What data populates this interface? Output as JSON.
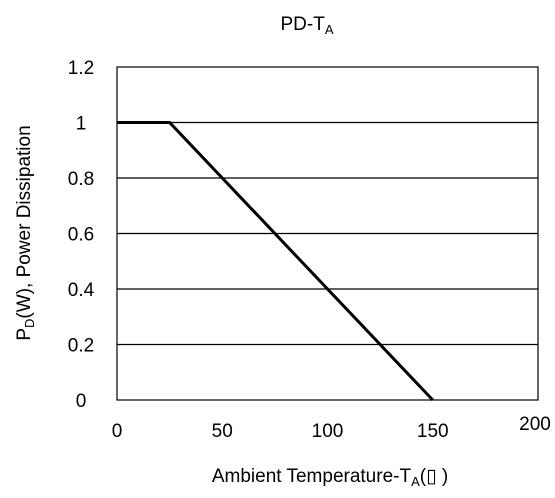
{
  "chart_data": {
    "type": "line",
    "title_main": "PD-T",
    "title_sub": "A",
    "ylabel_main_1": "P",
    "ylabel_sub": "D",
    "ylabel_main_2": "(W), Power Dissipation",
    "xlabel_main_1": "Ambient Temperature-T",
    "xlabel_sub": "A",
    "xlabel_main_2": "(",
    "xlabel_unit_glyph": "▯",
    "xlabel_main_3": " )",
    "x_ticks": [
      "0",
      "50",
      "100",
      "150",
      "200"
    ],
    "y_ticks": [
      "0",
      "0.2",
      "0.4",
      "0.6",
      "0.8",
      "1",
      "1.2"
    ],
    "xlim": [
      0,
      200
    ],
    "ylim": [
      0,
      1.2
    ],
    "grid": "horizontal",
    "series": [
      {
        "x": [
          0,
          25,
          150
        ],
        "y": [
          1,
          1,
          0
        ]
      }
    ]
  },
  "colors": {
    "line": "#000000",
    "grid": "#000000",
    "background": "#ffffff"
  }
}
